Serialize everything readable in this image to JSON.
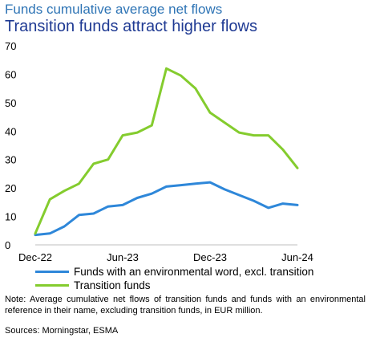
{
  "title": "Funds cumulative average net flows",
  "subtitle": "Transition funds attract higher flows",
  "note": "Note: Average cumulative net flows of transition funds and funds with an environmental reference in their name, excluding transition funds, in EUR million.",
  "source": "Sources: Morningstar, ESMA",
  "chart_data": {
    "type": "line",
    "title": "Transition funds attract higher flows",
    "x": [
      "Dec-22",
      "Jan-23",
      "Feb-23",
      "Mar-23",
      "Apr-23",
      "May-23",
      "Jun-23",
      "Jul-23",
      "Aug-23",
      "Sep-23",
      "Oct-23",
      "Nov-23",
      "Dec-23",
      "Jan-24",
      "Feb-24",
      "Mar-24",
      "Apr-24",
      "May-24",
      "Jun-24"
    ],
    "x_tick_labels": [
      "Dec-22",
      "Jun-23",
      "Dec-23",
      "Jun-24"
    ],
    "x_tick_indices": [
      0,
      6,
      12,
      18
    ],
    "ylim": [
      0,
      70
    ],
    "y_ticks": [
      0,
      10,
      20,
      30,
      40,
      50,
      60,
      70
    ],
    "grid": false,
    "legend_position": "bottom",
    "series": [
      {
        "name": "Funds with an environmental word, excl. transition",
        "color": "#2e87d9",
        "values": [
          3.5,
          4.0,
          6.5,
          10.5,
          11.0,
          13.5,
          14.0,
          16.5,
          18.0,
          20.5,
          21.0,
          21.5,
          22.0,
          19.5,
          17.5,
          15.5,
          13.0,
          14.5,
          14.0
        ]
      },
      {
        "name": "Transition funds",
        "color": "#84cc2e",
        "values": [
          4.0,
          16.0,
          19.0,
          21.5,
          28.5,
          30.0,
          38.5,
          39.5,
          42.0,
          62.0,
          59.5,
          55.0,
          46.5,
          43.0,
          39.5,
          38.5,
          38.5,
          33.5,
          27.0
        ]
      }
    ]
  }
}
